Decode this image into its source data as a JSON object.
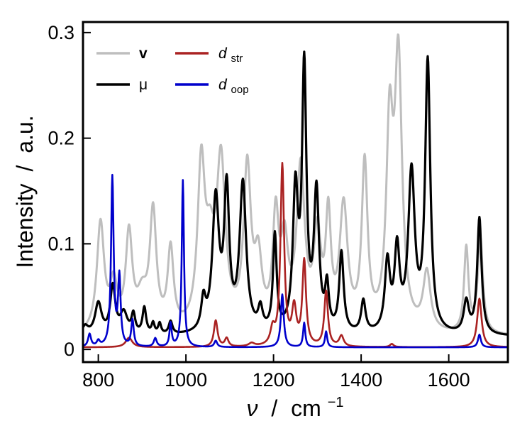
{
  "chart_data": {
    "type": "line",
    "title": "",
    "xlabel": {
      "symbol": "ν",
      "separator": "/",
      "unit": "cm",
      "unit_exponent": "−1"
    },
    "ylabel": {
      "quantity": "Intensity",
      "separator": "/",
      "unit": "a.u."
    },
    "xlim": [
      765,
      1735
    ],
    "ylim": [
      -0.012,
      0.31
    ],
    "xticks": [
      800,
      1000,
      1200,
      1400,
      1600
    ],
    "xtick_labels": [
      "800",
      "1000",
      "1200",
      "1400",
      "1600"
    ],
    "yticks": [
      0,
      0.1,
      0.2,
      0.3
    ],
    "ytick_labels": [
      "0",
      "0.1",
      "0.2",
      "0.3"
    ],
    "grid": false,
    "legend_position": "top-left",
    "series": [
      {
        "key": "v",
        "name": "v",
        "color": "#bebebe",
        "baseline": 0.012,
        "peaks": [
          [
            805,
            0.103,
            10
          ],
          [
            835,
            0.042,
            10
          ],
          [
            870,
            0.09,
            9
          ],
          [
            900,
            0.03,
            14
          ],
          [
            925,
            0.11,
            9
          ],
          [
            965,
            0.075,
            8
          ],
          [
            1035,
            0.15,
            10
          ],
          [
            1055,
            0.06,
            12
          ],
          [
            1080,
            0.155,
            12
          ],
          [
            1140,
            0.15,
            10
          ],
          [
            1165,
            0.06,
            10
          ],
          [
            1205,
            0.1,
            8
          ],
          [
            1225,
            0.075,
            10
          ],
          [
            1262,
            0.15,
            11
          ],
          [
            1300,
            0.085,
            10
          ],
          [
            1325,
            0.1,
            7
          ],
          [
            1360,
            0.115,
            11
          ],
          [
            1408,
            0.155,
            8
          ],
          [
            1465,
            0.18,
            9
          ],
          [
            1485,
            0.25,
            10
          ],
          [
            1550,
            0.055,
            10
          ],
          [
            1640,
            0.08,
            6
          ],
          [
            1672,
            0.09,
            7
          ]
        ]
      },
      {
        "key": "mu",
        "name": "μ",
        "color": "#000000",
        "baseline": 0.012,
        "peaks": [
          [
            770,
            0.008,
            8
          ],
          [
            800,
            0.03,
            9
          ],
          [
            833,
            0.045,
            7
          ],
          [
            858,
            0.02,
            10
          ],
          [
            880,
            0.018,
            5
          ],
          [
            905,
            0.025,
            5
          ],
          [
            925,
            0.01,
            4
          ],
          [
            940,
            0.01,
            4
          ],
          [
            965,
            0.012,
            5
          ],
          [
            1040,
            0.028,
            6
          ],
          [
            1068,
            0.125,
            9
          ],
          [
            1093,
            0.13,
            7
          ],
          [
            1130,
            0.14,
            9
          ],
          [
            1170,
            0.02,
            6
          ],
          [
            1203,
            0.09,
            5
          ],
          [
            1250,
            0.13,
            7
          ],
          [
            1270,
            0.245,
            6
          ],
          [
            1298,
            0.13,
            7
          ],
          [
            1322,
            0.04,
            5
          ],
          [
            1355,
            0.075,
            6
          ],
          [
            1405,
            0.03,
            6
          ],
          [
            1460,
            0.065,
            7
          ],
          [
            1482,
            0.075,
            7
          ],
          [
            1515,
            0.15,
            9
          ],
          [
            1552,
            0.255,
            7
          ],
          [
            1640,
            0.03,
            7
          ],
          [
            1670,
            0.11,
            6
          ]
        ]
      },
      {
        "key": "dstr",
        "name_main": "d",
        "name_sub": "str",
        "color": "#aa2222",
        "baseline": 0.002,
        "peaks": [
          [
            870,
            0.009,
            9
          ],
          [
            1068,
            0.025,
            5
          ],
          [
            1093,
            0.008,
            5
          ],
          [
            1150,
            0.003,
            8
          ],
          [
            1198,
            0.015,
            6
          ],
          [
            1220,
            0.171,
            5
          ],
          [
            1247,
            0.035,
            6
          ],
          [
            1270,
            0.08,
            5
          ],
          [
            1320,
            0.052,
            5
          ],
          [
            1355,
            0.01,
            6
          ],
          [
            1470,
            0.003,
            5
          ],
          [
            1670,
            0.046,
            6
          ]
        ]
      },
      {
        "key": "doop",
        "name_main": "d",
        "name_sub": "oop",
        "color": "#0000cc",
        "baseline": 0.002,
        "peaks": [
          [
            780,
            0.012,
            4
          ],
          [
            800,
            0.005,
            4
          ],
          [
            832,
            0.16,
            3.5
          ],
          [
            848,
            0.065,
            3.5
          ],
          [
            878,
            0.025,
            3.5
          ],
          [
            930,
            0.008,
            4
          ],
          [
            965,
            0.022,
            3
          ],
          [
            993,
            0.158,
            3
          ],
          [
            1068,
            0.006,
            4
          ],
          [
            1220,
            0.05,
            4
          ],
          [
            1270,
            0.023,
            3
          ],
          [
            1320,
            0.015,
            3
          ],
          [
            1670,
            0.012,
            4
          ]
        ]
      }
    ]
  }
}
